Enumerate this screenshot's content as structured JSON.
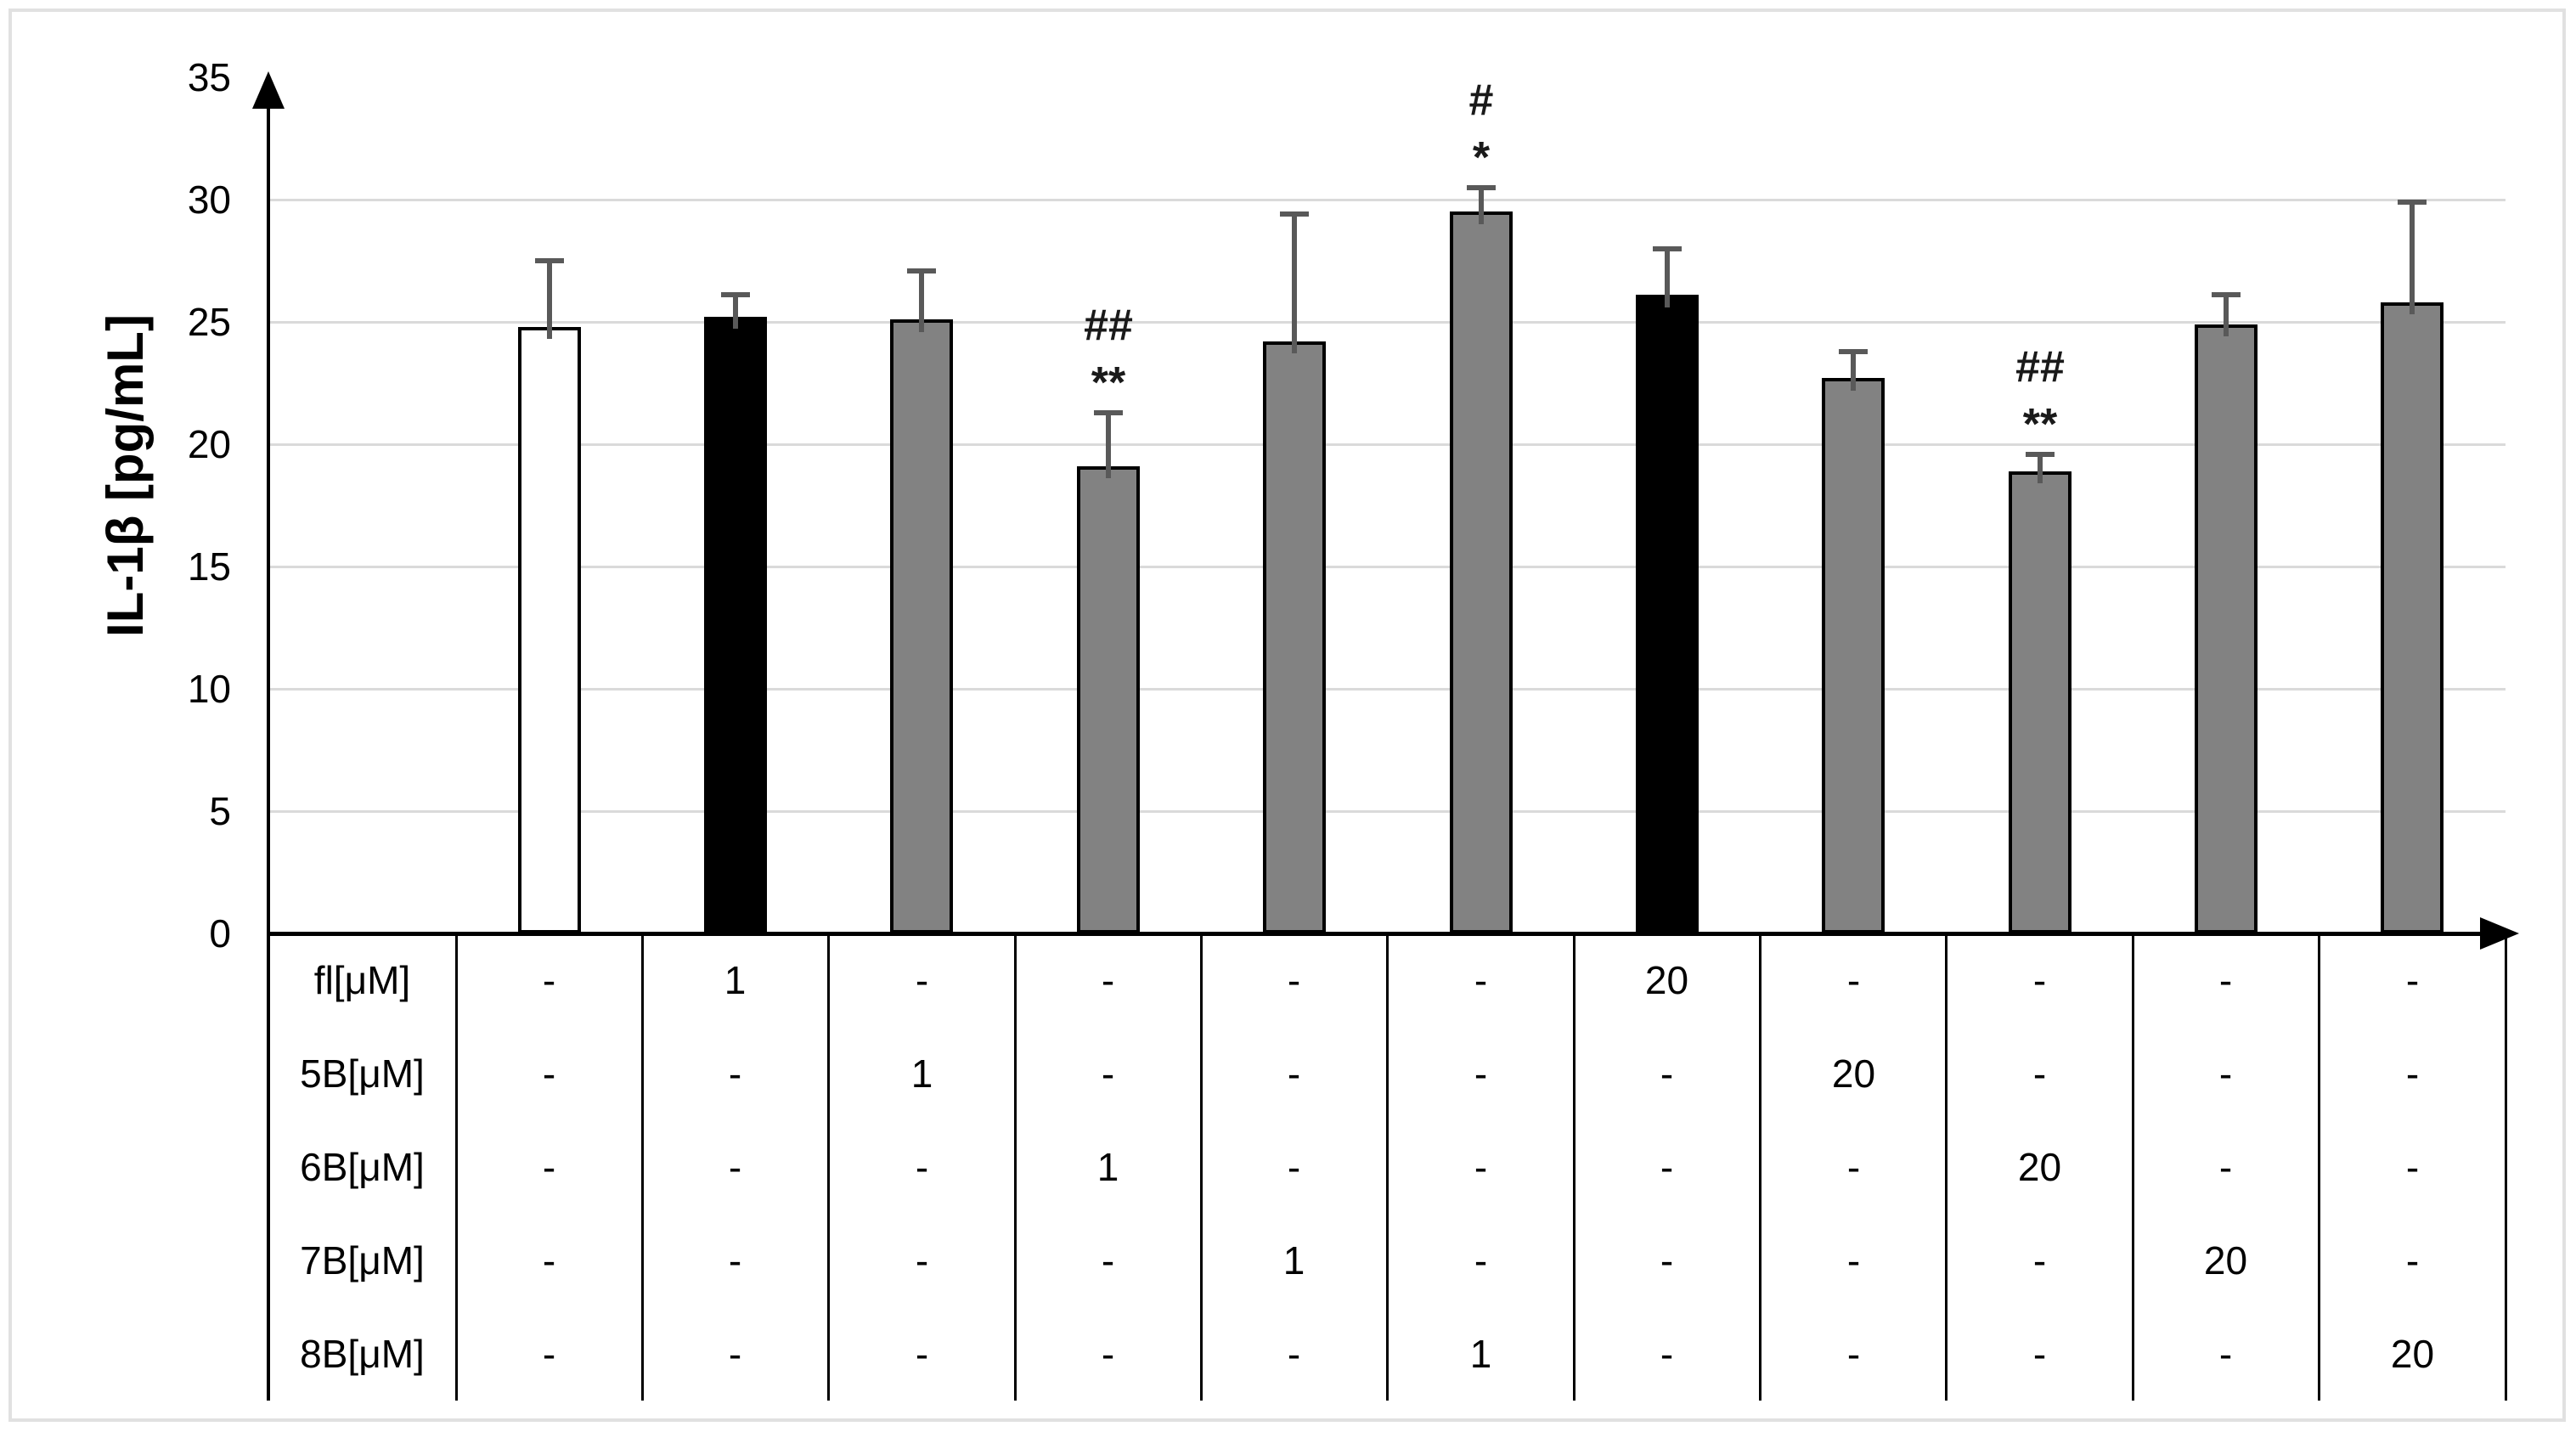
{
  "chart_data": {
    "type": "bar",
    "title": "",
    "xlabel": "",
    "ylabel": "IL-1β [pg/mL]",
    "ylim": [
      0,
      35
    ],
    "yticks": [
      0,
      5,
      10,
      15,
      20,
      25,
      30,
      35
    ],
    "gridlines": [
      5,
      10,
      15,
      20,
      25,
      30
    ],
    "grid": true,
    "legend_position": "none",
    "bars": [
      {
        "value": 24.8,
        "error_plus": 2.7,
        "fill": "white",
        "sig": []
      },
      {
        "value": 25.2,
        "error_plus": 0.9,
        "fill": "black",
        "sig": []
      },
      {
        "value": 25.1,
        "error_plus": 2.0,
        "fill": "gray",
        "sig": []
      },
      {
        "value": 19.1,
        "error_plus": 2.2,
        "fill": "gray",
        "sig": [
          "##",
          "**"
        ]
      },
      {
        "value": 24.2,
        "error_plus": 5.2,
        "fill": "gray",
        "sig": []
      },
      {
        "value": 29.5,
        "error_plus": 1.0,
        "fill": "gray",
        "sig": [
          "#",
          "*"
        ]
      },
      {
        "value": 26.1,
        "error_plus": 1.9,
        "fill": "black",
        "sig": []
      },
      {
        "value": 22.7,
        "error_plus": 1.1,
        "fill": "gray",
        "sig": []
      },
      {
        "value": 18.9,
        "error_plus": 0.7,
        "fill": "gray",
        "sig": [
          "##",
          "**"
        ]
      },
      {
        "value": 24.9,
        "error_plus": 1.2,
        "fill": "gray",
        "sig": []
      },
      {
        "value": 25.8,
        "error_plus": 4.1,
        "fill": "gray",
        "sig": []
      }
    ],
    "condition_table": {
      "rows": [
        {
          "label": "fl[μM]",
          "cells": [
            "-",
            "1",
            "-",
            "-",
            "-",
            "-",
            "20",
            "-",
            "-",
            "-",
            "-"
          ]
        },
        {
          "label": "5B[μM]",
          "cells": [
            "-",
            "-",
            "1",
            "-",
            "-",
            "-",
            "-",
            "20",
            "-",
            "-",
            "-"
          ]
        },
        {
          "label": "6B[μM]",
          "cells": [
            "-",
            "-",
            "-",
            "1",
            "-",
            "-",
            "-",
            "-",
            "20",
            "-",
            "-"
          ]
        },
        {
          "label": "7B[μM]",
          "cells": [
            "-",
            "-",
            "-",
            "-",
            "1",
            "-",
            "-",
            "-",
            "-",
            "20",
            "-"
          ]
        },
        {
          "label": "8B[μM]",
          "cells": [
            "-",
            "-",
            "-",
            "-",
            "-",
            "1",
            "-",
            "-",
            "-",
            "-",
            "20"
          ]
        }
      ]
    },
    "colors": {
      "white_fill": "#ffffff",
      "black_fill": "#000000",
      "gray_fill": "#828282",
      "bar_border": "#000000",
      "error_bar": "#595959",
      "gridline": "#dadada",
      "axis": "#000000",
      "frame_border": "#e1e1e1"
    }
  }
}
